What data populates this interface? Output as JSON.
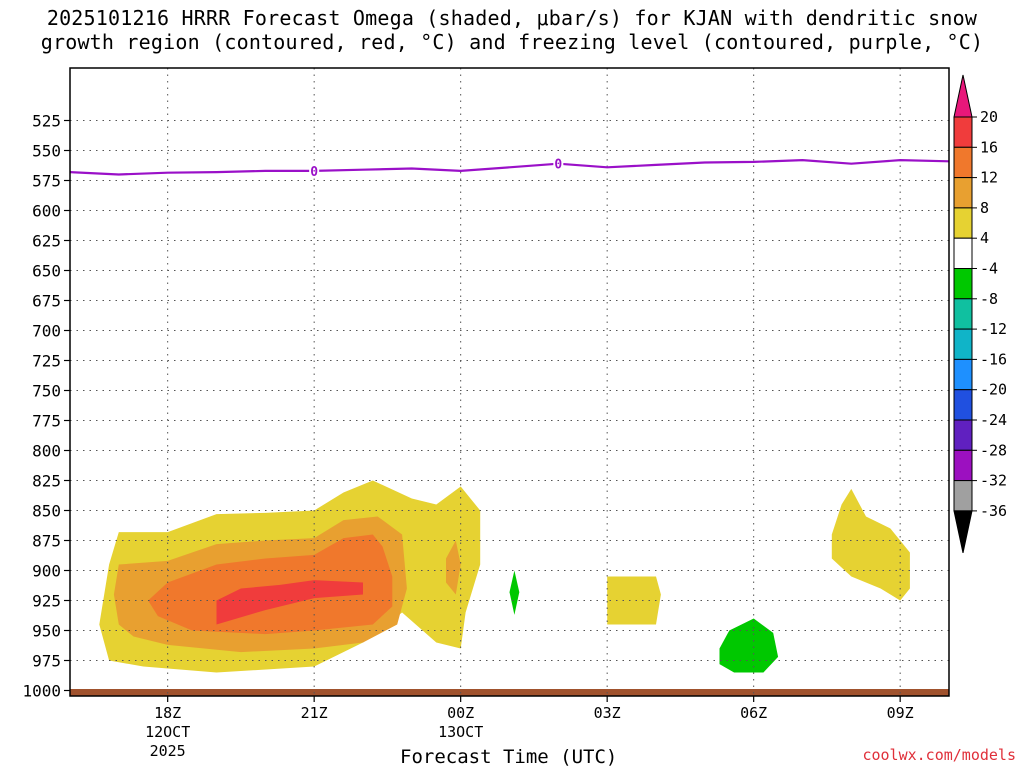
{
  "chart_data": {
    "type": "heatmap",
    "title_line1": "2025101216 HRRR Forecast Omega (shaded, μbar/s) for KJAN with dendritic snow",
    "title_line2": "growth region (contoured, red, °C) and freezing level (contoured, purple, °C)",
    "xlabel": "Forecast Time (UTC)",
    "ylabel": "",
    "yaxis": {
      "ticks": [
        525,
        550,
        575,
        600,
        625,
        650,
        675,
        700,
        725,
        750,
        775,
        800,
        825,
        850,
        875,
        900,
        925,
        950,
        975,
        1000
      ],
      "range": [
        500,
        1002
      ],
      "inverted": true
    },
    "xaxis": {
      "range_hours": [
        16.0,
        34.0
      ],
      "ticks": [
        {
          "hour": 18,
          "label": "18Z",
          "sub1": "12OCT",
          "sub2": "2025"
        },
        {
          "hour": 21,
          "label": "21Z",
          "sub1": "",
          "sub2": ""
        },
        {
          "hour": 24,
          "label": "00Z",
          "sub1": "13OCT",
          "sub2": ""
        },
        {
          "hour": 27,
          "label": "03Z",
          "sub1": "",
          "sub2": ""
        },
        {
          "hour": 30,
          "label": "06Z",
          "sub1": "",
          "sub2": ""
        },
        {
          "hour": 33,
          "label": "09Z",
          "sub1": "",
          "sub2": ""
        }
      ]
    },
    "grid": true,
    "colorbar": {
      "labels": [
        "20",
        "16",
        "12",
        "8",
        "4",
        "-4",
        "-8",
        "-12",
        "-16",
        "-20",
        "-24",
        "-28",
        "-32",
        "-36"
      ],
      "colors": [
        "#e8177a",
        "#f03c3c",
        "#f0782c",
        "#e8a030",
        "#e6d232",
        "#ffffff",
        "#00c800",
        "#10c0a0",
        "#10b4c8",
        "#1e90ff",
        "#2050e0",
        "#6020c0",
        "#9c10c0",
        "#a0a0a0",
        "#000000"
      ]
    },
    "freezing_level": {
      "color": "#9a10c8",
      "contour_label": "0",
      "points": [
        [
          16.0,
          568
        ],
        [
          17.0,
          570
        ],
        [
          18.0,
          568.5
        ],
        [
          19.0,
          568
        ],
        [
          20.0,
          567
        ],
        [
          21.0,
          567
        ],
        [
          22.0,
          566
        ],
        [
          23.0,
          565
        ],
        [
          24.0,
          567
        ],
        [
          25.0,
          564
        ],
        [
          26.0,
          561
        ],
        [
          27.0,
          564
        ],
        [
          28.0,
          562
        ],
        [
          29.0,
          560
        ],
        [
          30.0,
          559.5
        ],
        [
          31.0,
          558
        ],
        [
          32.0,
          561
        ],
        [
          33.0,
          558
        ],
        [
          34.0,
          559
        ]
      ]
    },
    "omega_regions": [
      {
        "value": 4,
        "color": "#e6d232",
        "points": [
          [
            16.8,
            975
          ],
          [
            16.6,
            945
          ],
          [
            16.8,
            895
          ],
          [
            17.0,
            868
          ],
          [
            18.0,
            868
          ],
          [
            19.0,
            853
          ],
          [
            20.0,
            852
          ],
          [
            21.0,
            850
          ],
          [
            21.6,
            835
          ],
          [
            22.2,
            825
          ],
          [
            23.0,
            840
          ],
          [
            23.5,
            845
          ],
          [
            24.0,
            830
          ],
          [
            24.4,
            850
          ],
          [
            24.4,
            895
          ],
          [
            24.1,
            935
          ],
          [
            24.0,
            965
          ],
          [
            23.5,
            960
          ],
          [
            22.8,
            935
          ],
          [
            22.0,
            960
          ],
          [
            21.0,
            980
          ],
          [
            19.0,
            985
          ],
          [
            17.5,
            980
          ]
        ]
      },
      {
        "value": 4,
        "color": "#e6d232",
        "points": [
          [
            27.0,
            905
          ],
          [
            28.0,
            905
          ],
          [
            28.1,
            920
          ],
          [
            28.0,
            945
          ],
          [
            27.0,
            945
          ]
        ]
      },
      {
        "value": 4,
        "color": "#e6d232",
        "points": [
          [
            31.6,
            870
          ],
          [
            31.8,
            845
          ],
          [
            32.0,
            832
          ],
          [
            32.3,
            855
          ],
          [
            32.8,
            865
          ],
          [
            33.2,
            885
          ],
          [
            33.2,
            915
          ],
          [
            33.0,
            925
          ],
          [
            32.6,
            915
          ],
          [
            32.0,
            905
          ],
          [
            31.6,
            890
          ]
        ]
      },
      {
        "value": 8,
        "color": "#e8a030",
        "points": [
          [
            17.0,
            945
          ],
          [
            16.9,
            920
          ],
          [
            17.0,
            895
          ],
          [
            18.0,
            892
          ],
          [
            19.0,
            878
          ],
          [
            20.0,
            875
          ],
          [
            21.0,
            873
          ],
          [
            21.6,
            858
          ],
          [
            22.3,
            855
          ],
          [
            22.8,
            870
          ],
          [
            22.9,
            915
          ],
          [
            22.7,
            945
          ],
          [
            22.0,
            960
          ],
          [
            21.0,
            965
          ],
          [
            19.5,
            968
          ],
          [
            18.0,
            962
          ],
          [
            17.3,
            955
          ]
        ]
      },
      {
        "value": 8,
        "color": "#e8a030",
        "points": [
          [
            23.7,
            890
          ],
          [
            23.9,
            875
          ],
          [
            24.0,
            895
          ],
          [
            23.9,
            920
          ],
          [
            23.7,
            910
          ]
        ]
      },
      {
        "value": 12,
        "color": "#f0782c",
        "points": [
          [
            17.6,
            925
          ],
          [
            18.0,
            910
          ],
          [
            19.0,
            895
          ],
          [
            20.0,
            890
          ],
          [
            21.0,
            887
          ],
          [
            21.6,
            873
          ],
          [
            22.2,
            870
          ],
          [
            22.4,
            880
          ],
          [
            22.6,
            905
          ],
          [
            22.6,
            930
          ],
          [
            22.2,
            945
          ],
          [
            21.0,
            950
          ],
          [
            20.0,
            953
          ],
          [
            18.5,
            950
          ],
          [
            17.8,
            938
          ]
        ]
      },
      {
        "value": 16,
        "color": "#f03c3c",
        "points": [
          [
            19.0,
            925
          ],
          [
            19.5,
            915
          ],
          [
            20.3,
            912
          ],
          [
            21.0,
            908
          ],
          [
            22.0,
            910
          ],
          [
            22.0,
            920
          ],
          [
            21.0,
            923
          ],
          [
            20.0,
            933
          ],
          [
            19.0,
            945
          ]
        ]
      },
      {
        "value": -4,
        "color": "#00c800",
        "points": [
          [
            25.0,
            918
          ],
          [
            25.1,
            900
          ],
          [
            25.2,
            918
          ],
          [
            25.1,
            937
          ]
        ]
      },
      {
        "value": -4,
        "color": "#00c800",
        "points": [
          [
            29.3,
            965
          ],
          [
            29.5,
            950
          ],
          [
            30.0,
            940
          ],
          [
            30.4,
            952
          ],
          [
            30.5,
            972
          ],
          [
            30.2,
            985
          ],
          [
            29.6,
            985
          ],
          [
            29.3,
            978
          ]
        ]
      }
    ],
    "surface_band_color": "#a0522d"
  },
  "credit": "coolwx.com/models"
}
